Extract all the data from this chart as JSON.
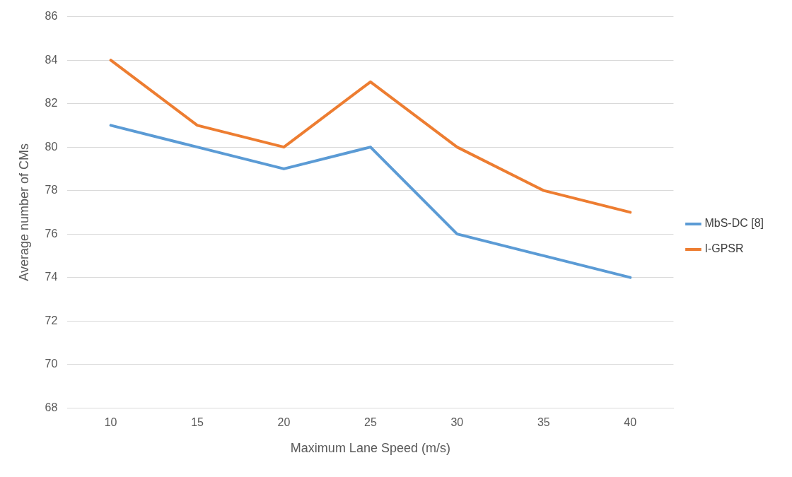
{
  "chart_data": {
    "type": "line",
    "xlabel": "Maximum Lane Speed (m/s)",
    "ylabel": "Average number of CMs",
    "categories": [
      "10",
      "15",
      "20",
      "25",
      "30",
      "35",
      "40"
    ],
    "series": [
      {
        "name": "MbS-DC [8]",
        "color": "#5b9bd5",
        "values": [
          81,
          80,
          79,
          80,
          76,
          75,
          74
        ]
      },
      {
        "name": "I-GPSR",
        "color": "#ed7d31",
        "values": [
          84,
          81,
          80,
          83,
          80,
          78,
          77
        ]
      }
    ],
    "ylim": [
      68,
      86
    ],
    "yticks": [
      68,
      70,
      72,
      74,
      76,
      78,
      80,
      82,
      84,
      86
    ],
    "grid": "y",
    "legend": "right",
    "marker": "none",
    "line_style": "solid"
  }
}
